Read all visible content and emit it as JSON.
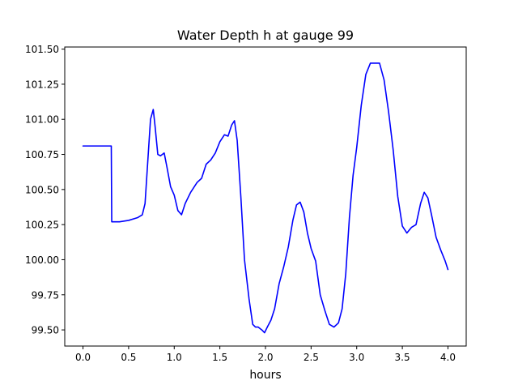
{
  "chart_data": {
    "type": "line",
    "title": "Water Depth h at gauge 99",
    "xlabel": "hours",
    "ylabel": "",
    "xlim": [
      -0.2,
      4.2
    ],
    "ylim": [
      99.385,
      101.515
    ],
    "xticks": [
      0.0,
      0.5,
      1.0,
      1.5,
      2.0,
      2.5,
      3.0,
      3.5,
      4.0
    ],
    "xtick_labels": [
      "0.0",
      "0.5",
      "1.0",
      "1.5",
      "2.0",
      "2.5",
      "3.0",
      "3.5",
      "4.0"
    ],
    "yticks": [
      99.5,
      99.75,
      100.0,
      100.25,
      100.5,
      100.75,
      101.0,
      101.25,
      101.5
    ],
    "ytick_labels": [
      "99.50",
      "99.75",
      "100.00",
      "100.25",
      "100.50",
      "100.75",
      "101.00",
      "101.25",
      "101.50"
    ],
    "grid": false,
    "line_color": "#0000ff",
    "series": [
      {
        "points": [
          [
            0.0,
            100.81
          ],
          [
            0.1,
            100.81
          ],
          [
            0.2,
            100.81
          ],
          [
            0.31,
            100.81
          ],
          [
            0.315,
            100.27
          ],
          [
            0.4,
            100.27
          ],
          [
            0.5,
            100.28
          ],
          [
            0.6,
            100.3
          ],
          [
            0.65,
            100.32
          ],
          [
            0.68,
            100.4
          ],
          [
            0.71,
            100.7
          ],
          [
            0.74,
            101.0
          ],
          [
            0.77,
            101.07
          ],
          [
            0.79,
            100.95
          ],
          [
            0.82,
            100.75
          ],
          [
            0.85,
            100.74
          ],
          [
            0.89,
            100.76
          ],
          [
            0.92,
            100.66
          ],
          [
            0.96,
            100.52
          ],
          [
            1.0,
            100.46
          ],
          [
            1.04,
            100.35
          ],
          [
            1.08,
            100.32
          ],
          [
            1.12,
            100.4
          ],
          [
            1.18,
            100.48
          ],
          [
            1.25,
            100.55
          ],
          [
            1.3,
            100.58
          ],
          [
            1.35,
            100.68
          ],
          [
            1.4,
            100.71
          ],
          [
            1.45,
            100.76
          ],
          [
            1.5,
            100.84
          ],
          [
            1.55,
            100.89
          ],
          [
            1.59,
            100.88
          ],
          [
            1.63,
            100.96
          ],
          [
            1.66,
            100.99
          ],
          [
            1.69,
            100.85
          ],
          [
            1.73,
            100.45
          ],
          [
            1.77,
            100.0
          ],
          [
            1.82,
            99.72
          ],
          [
            1.86,
            99.54
          ],
          [
            1.89,
            99.52
          ],
          [
            1.92,
            99.52
          ],
          [
            1.96,
            99.5
          ],
          [
            1.99,
            99.48
          ],
          [
            2.02,
            99.52
          ],
          [
            2.06,
            99.57
          ],
          [
            2.1,
            99.65
          ],
          [
            2.15,
            99.83
          ],
          [
            2.2,
            99.95
          ],
          [
            2.25,
            100.09
          ],
          [
            2.3,
            100.28
          ],
          [
            2.34,
            100.39
          ],
          [
            2.38,
            100.41
          ],
          [
            2.42,
            100.34
          ],
          [
            2.46,
            100.19
          ],
          [
            2.5,
            100.08
          ],
          [
            2.55,
            99.99
          ],
          [
            2.6,
            99.75
          ],
          [
            2.65,
            99.64
          ],
          [
            2.7,
            99.54
          ],
          [
            2.75,
            99.52
          ],
          [
            2.8,
            99.55
          ],
          [
            2.84,
            99.65
          ],
          [
            2.88,
            99.9
          ],
          [
            2.92,
            100.3
          ],
          [
            2.96,
            100.6
          ],
          [
            3.0,
            100.8
          ],
          [
            3.05,
            101.1
          ],
          [
            3.1,
            101.32
          ],
          [
            3.15,
            101.4
          ],
          [
            3.2,
            101.4
          ],
          [
            3.25,
            101.4
          ],
          [
            3.3,
            101.28
          ],
          [
            3.35,
            101.05
          ],
          [
            3.4,
            100.78
          ],
          [
            3.45,
            100.45
          ],
          [
            3.5,
            100.24
          ],
          [
            3.55,
            100.19
          ],
          [
            3.6,
            100.23
          ],
          [
            3.65,
            100.25
          ],
          [
            3.7,
            100.4
          ],
          [
            3.74,
            100.48
          ],
          [
            3.78,
            100.44
          ],
          [
            3.82,
            100.32
          ],
          [
            3.87,
            100.16
          ],
          [
            3.92,
            100.07
          ],
          [
            3.97,
            99.99
          ],
          [
            4.0,
            99.93
          ]
        ]
      }
    ]
  }
}
